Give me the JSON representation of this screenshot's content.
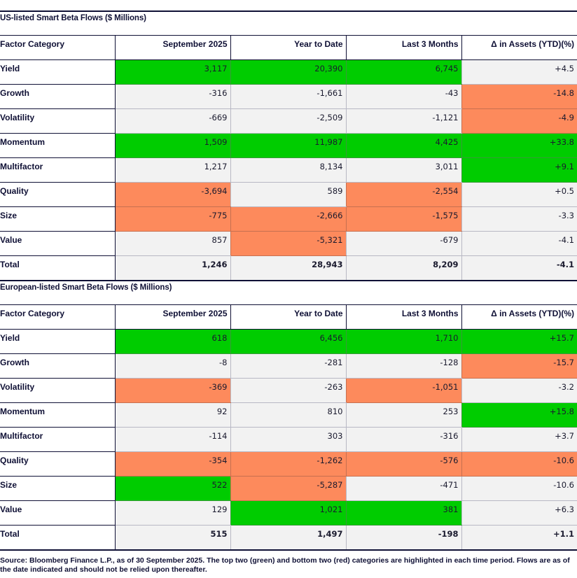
{
  "tables": [
    {
      "title": "US-listed Smart Beta Flows ($ Millions)",
      "headers": [
        "Factor Category",
        "September 2025",
        "Year to Date",
        "Last 3 Months",
        "Δ in Assets (YTD)(%)"
      ],
      "rows": [
        {
          "label": "Yield",
          "values": [
            "3,117",
            "20,390",
            "6,745",
            "+4.5"
          ],
          "highlight": [
            "green",
            "green",
            "green",
            ""
          ]
        },
        {
          "label": "Growth",
          "values": [
            "-316",
            "-1,661",
            "-43",
            "-14.8"
          ],
          "highlight": [
            "",
            "",
            "",
            "red"
          ]
        },
        {
          "label": "Volatility",
          "values": [
            "-669",
            "-2,509",
            "-1,121",
            "-4.9"
          ],
          "highlight": [
            "",
            "",
            "",
            "red"
          ]
        },
        {
          "label": "Momentum",
          "values": [
            "1,509",
            "11,987",
            "4,425",
            "+33.8"
          ],
          "highlight": [
            "green",
            "green",
            "green",
            "green"
          ]
        },
        {
          "label": "Multifactor",
          "values": [
            "1,217",
            "8,134",
            "3,011",
            "+9.1"
          ],
          "highlight": [
            "",
            "",
            "",
            "green"
          ]
        },
        {
          "label": "Quality",
          "values": [
            "-3,694",
            "589",
            "-2,554",
            "+0.5"
          ],
          "highlight": [
            "red",
            "",
            "red",
            ""
          ]
        },
        {
          "label": "Size",
          "values": [
            "-775",
            "-2,666",
            "-1,575",
            "-3.3"
          ],
          "highlight": [
            "red",
            "red",
            "red",
            ""
          ]
        },
        {
          "label": "Value",
          "values": [
            "857",
            "-5,321",
            "-679",
            "-4.1"
          ],
          "highlight": [
            "",
            "red",
            "",
            ""
          ]
        },
        {
          "label": "Total",
          "values": [
            "1,246",
            "28,943",
            "8,209",
            "-4.1"
          ],
          "highlight": [
            "",
            "",
            "",
            ""
          ]
        }
      ]
    },
    {
      "title": "European-listed Smart Beta Flows ($ Millions)",
      "headers": [
        "Factor Category",
        "September 2025",
        "Year to Date",
        "Last 3 Months",
        "Δ in Assets (YTD)(%)"
      ],
      "rows": [
        {
          "label": "Yield",
          "values": [
            "618",
            "6,456",
            "1,710",
            "+15.7"
          ],
          "highlight": [
            "green",
            "green",
            "green",
            "green"
          ]
        },
        {
          "label": "Growth",
          "values": [
            "-8",
            "-281",
            "-128",
            "-15.7"
          ],
          "highlight": [
            "",
            "",
            "",
            "red"
          ]
        },
        {
          "label": "Volatility",
          "values": [
            "-369",
            "-263",
            "-1,051",
            "-3.2"
          ],
          "highlight": [
            "red",
            "",
            "red",
            ""
          ]
        },
        {
          "label": "Momentum",
          "values": [
            "92",
            "810",
            "253",
            "+15.8"
          ],
          "highlight": [
            "",
            "",
            "",
            "green"
          ]
        },
        {
          "label": "Multifactor",
          "values": [
            "-114",
            "303",
            "-316",
            "+3.7"
          ],
          "highlight": [
            "",
            "",
            "",
            ""
          ]
        },
        {
          "label": "Quality",
          "values": [
            "-354",
            "-1,262",
            "-576",
            "-10.6"
          ],
          "highlight": [
            "red",
            "red",
            "red",
            "red"
          ]
        },
        {
          "label": "Size",
          "values": [
            "522",
            "-5,287",
            "-471",
            "-10.6"
          ],
          "highlight": [
            "green",
            "red",
            "",
            ""
          ]
        },
        {
          "label": "Value",
          "values": [
            "129",
            "1,021",
            "381",
            "+6.3"
          ],
          "highlight": [
            "",
            "green",
            "green",
            ""
          ]
        },
        {
          "label": "Total",
          "values": [
            "515",
            "1,497",
            "-198",
            "+1.1"
          ],
          "highlight": [
            "",
            "",
            "",
            ""
          ]
        }
      ]
    }
  ],
  "footnote": "Source: Bloomberg Finance L.P., as of 30 September 2025. The top two (green) and bottom two (red) categories are highlighted in each time period. Flows are as of the date indicated and should not be relied upon thereafter.",
  "colors": {
    "green": "#00cc00",
    "red": "#fd8a5c",
    "navy": "#0f1035",
    "cell_bg": "#f2f2f2"
  },
  "chart_data": [
    {
      "type": "table",
      "title": "US-listed Smart Beta Flows ($ Millions)",
      "columns": [
        "Factor Category",
        "September 2025",
        "Year to Date",
        "Last 3 Months",
        "Δ in Assets (YTD)(%)"
      ],
      "categories": [
        "Yield",
        "Growth",
        "Volatility",
        "Momentum",
        "Multifactor",
        "Quality",
        "Size",
        "Value",
        "Total"
      ],
      "series": [
        {
          "name": "September 2025",
          "values": [
            3117,
            -316,
            -669,
            1509,
            1217,
            -3694,
            -775,
            857,
            1246
          ]
        },
        {
          "name": "Year to Date",
          "values": [
            20390,
            -1661,
            -2509,
            11987,
            8134,
            589,
            -2666,
            -5321,
            28943
          ]
        },
        {
          "name": "Last 3 Months",
          "values": [
            6745,
            -43,
            -1121,
            4425,
            3011,
            -2554,
            -1575,
            -679,
            8209
          ]
        },
        {
          "name": "Δ in Assets (YTD)(%)",
          "values": [
            4.5,
            -14.8,
            -4.9,
            33.8,
            9.1,
            0.5,
            -3.3,
            -4.1,
            -4.1
          ]
        }
      ]
    },
    {
      "type": "table",
      "title": "European-listed Smart Beta Flows ($ Millions)",
      "columns": [
        "Factor Category",
        "September 2025",
        "Year to Date",
        "Last 3 Months",
        "Δ in Assets (YTD)(%)"
      ],
      "categories": [
        "Yield",
        "Growth",
        "Volatility",
        "Momentum",
        "Multifactor",
        "Quality",
        "Size",
        "Value",
        "Total"
      ],
      "series": [
        {
          "name": "September 2025",
          "values": [
            618,
            -8,
            -369,
            92,
            -114,
            -354,
            522,
            129,
            515
          ]
        },
        {
          "name": "Year to Date",
          "values": [
            6456,
            -281,
            -263,
            810,
            303,
            -1262,
            -5287,
            1021,
            1497
          ]
        },
        {
          "name": "Last 3 Months",
          "values": [
            1710,
            -128,
            -1051,
            253,
            -316,
            -576,
            -471,
            381,
            -198
          ]
        },
        {
          "name": "Δ in Assets (YTD)(%)",
          "values": [
            15.7,
            -15.7,
            -3.2,
            15.8,
            3.7,
            -10.6,
            -10.6,
            6.3,
            1.1
          ]
        }
      ]
    }
  ]
}
